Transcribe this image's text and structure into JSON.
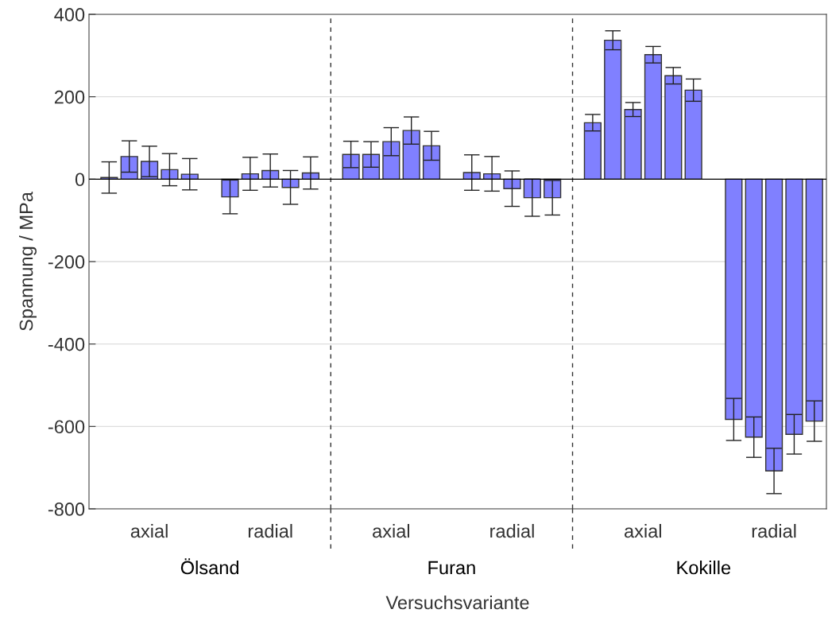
{
  "chart_data": {
    "type": "bar",
    "xlabel": "Versuchsvariante",
    "ylabel": "Spannung / MPa",
    "categories": [
      null,
      null,
      null,
      null,
      null,
      null,
      null,
      null,
      null,
      null,
      null,
      null,
      null,
      null,
      null,
      null,
      null,
      null,
      null,
      null,
      null,
      null,
      null,
      null,
      null,
      null,
      null,
      null,
      null,
      null,
      null,
      null,
      null,
      null,
      null,
      null
    ],
    "values": [
      4,
      55,
      43,
      23,
      12,
      null,
      -43,
      13,
      21,
      -20,
      15,
      null,
      60,
      60,
      91,
      118,
      81,
      null,
      16,
      13,
      -23,
      -45,
      -45,
      null,
      137,
      337,
      169,
      302,
      251,
      216,
      null,
      -583,
      -626,
      -708,
      -619,
      -587
    ],
    "errors": [
      38,
      38,
      37,
      39,
      38,
      null,
      41,
      40,
      40,
      41,
      39,
      null,
      32,
      31,
      34,
      33,
      35,
      null,
      43,
      42,
      43,
      45,
      42,
      null,
      20,
      23,
      17,
      20,
      20,
      27,
      null,
      51,
      49,
      55,
      48,
      49
    ],
    "color": "#8080ff",
    "ylim": [
      -800,
      400
    ],
    "yticks": [
      -800,
      -600,
      -400,
      -200,
      0,
      200,
      400
    ],
    "grid": "y",
    "annotations": [
      "axial",
      "radial",
      "axial",
      "radial",
      "axial",
      "radial",
      "Ölsand",
      "Furan",
      "Kokille"
    ],
    "ref_lines": [
      {
        "axis": "y",
        "value": 0,
        "color": "#000000",
        "line_style": "solid"
      }
    ]
  }
}
